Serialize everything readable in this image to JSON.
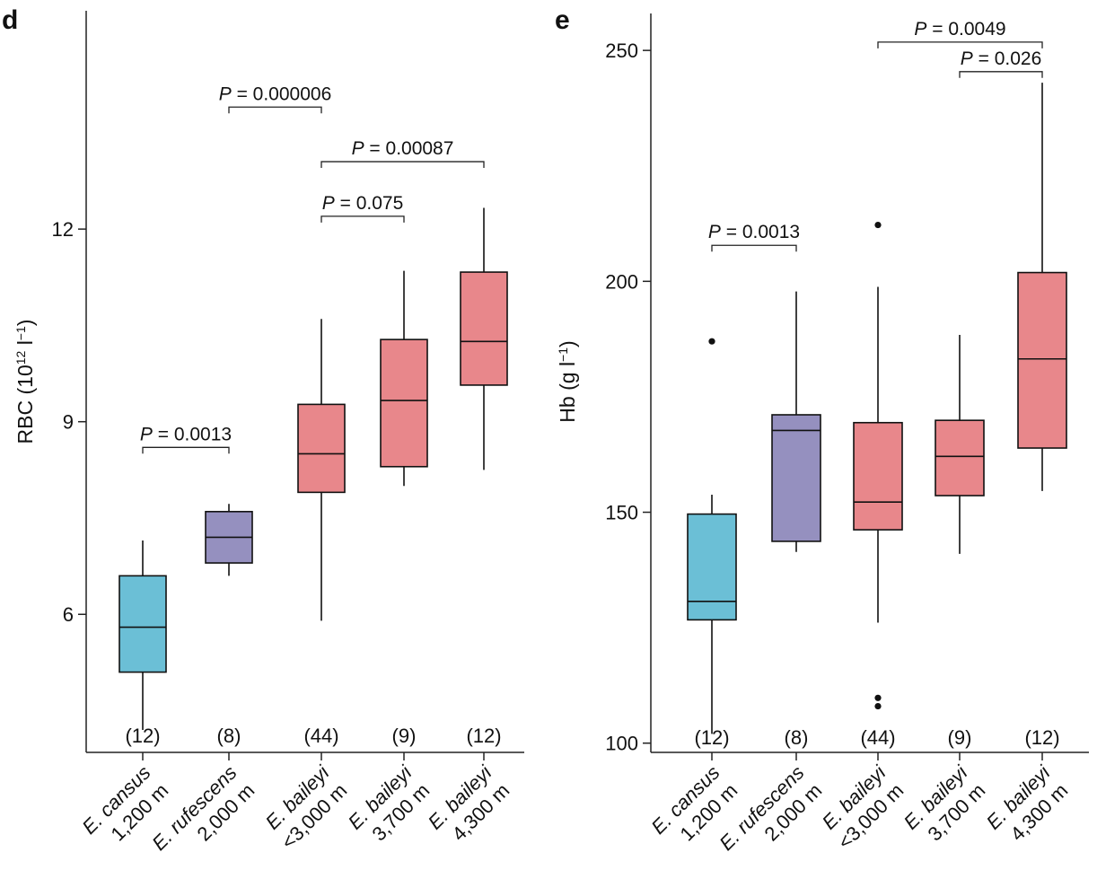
{
  "chart_data": [
    {
      "panel": "d",
      "type": "box",
      "ylabel": "RBC (10^12 l^-1)",
      "ylabel_parts": {
        "base": "RBC (10",
        "exp1": "12",
        "mid": " l",
        "exp2": "−1",
        "end": ")"
      },
      "ylim": [
        3.85,
        15.4
      ],
      "yticks": [
        6,
        9,
        12
      ],
      "colors": {
        "cansus": "#6bbfd6",
        "rufescens": "#9590bf",
        "baileyi": "#e8878b"
      },
      "groups": [
        {
          "label1": "E. cansus",
          "label2": "1,200 m",
          "n": "(12)",
          "color": "cansus",
          "whisker_low": 4.2,
          "q1": 5.1,
          "median": 5.8,
          "q3": 6.6,
          "whisker_high": 7.15,
          "outliers": []
        },
        {
          "label1": "E. rufescens",
          "label2": "2,000 m",
          "n": "(8)",
          "color": "rufescens",
          "whisker_low": 6.6,
          "q1": 6.8,
          "median": 7.2,
          "q3": 7.6,
          "whisker_high": 7.72,
          "outliers": []
        },
        {
          "label1": "E. baileyi",
          "label2": "<3,000 m",
          "n": "(44)",
          "color": "baileyi",
          "whisker_low": 5.9,
          "q1": 7.9,
          "median": 8.5,
          "q3": 9.27,
          "whisker_high": 10.6,
          "outliers": []
        },
        {
          "label1": "E. baileyi",
          "label2": "3,700 m",
          "n": "(9)",
          "color": "baileyi",
          "whisker_low": 8.0,
          "q1": 8.3,
          "median": 9.33,
          "q3": 10.28,
          "whisker_high": 11.35,
          "outliers": []
        },
        {
          "label1": "E. baileyi",
          "label2": "4,300 m",
          "n": "(12)",
          "color": "baileyi",
          "whisker_low": 8.25,
          "q1": 9.57,
          "median": 10.25,
          "q3": 11.33,
          "whisker_high": 12.33,
          "outliers": []
        }
      ],
      "comparisons": [
        {
          "from": 0,
          "to": 1,
          "y": 8.6,
          "label": "P = 0.0013"
        },
        {
          "from": 2,
          "to": 3,
          "y": 12.2,
          "label": "P = 0.075"
        },
        {
          "from": 2,
          "to": 4,
          "y": 13.05,
          "label": "P = 0.00087"
        },
        {
          "from": 1,
          "to": 2,
          "y": 13.9,
          "label": "P = 0.000006"
        }
      ]
    },
    {
      "panel": "e",
      "type": "box",
      "ylabel": "Hb (g l^-1)",
      "ylabel_parts": {
        "base": "Hb (g l",
        "exp1": "",
        "mid": "",
        "exp2": "−1",
        "end": ")"
      },
      "ylim": [
        98,
        258
      ],
      "yticks": [
        100,
        150,
        200,
        250
      ],
      "colors": {
        "cansus": "#6bbfd6",
        "rufescens": "#9590bf",
        "baileyi": "#e8878b"
      },
      "groups": [
        {
          "label1": "E. cansus",
          "label2": "1,200 m",
          "n": "(12)",
          "color": "cansus",
          "whisker_low": 102,
          "q1": 126.7,
          "median": 130.7,
          "q3": 149.6,
          "whisker_high": 153.8,
          "outliers": [
            187
          ]
        },
        {
          "label1": "E. rufescens",
          "label2": "2,000 m",
          "n": "(8)",
          "color": "rufescens",
          "whisker_low": 141.4,
          "q1": 143.7,
          "median": 167.7,
          "q3": 171.1,
          "whisker_high": 197.8,
          "outliers": []
        },
        {
          "label1": "E. baileyi",
          "label2": "<3,000 m",
          "n": "(44)",
          "color": "baileyi",
          "whisker_low": 126.1,
          "q1": 146.2,
          "median": 152.2,
          "q3": 169.4,
          "whisker_high": 198.8,
          "outliers": [
            212.2,
            109.8,
            108
          ]
        },
        {
          "label1": "E. baileyi",
          "label2": "3,700 m",
          "n": "(9)",
          "color": "baileyi",
          "whisker_low": 141,
          "q1": 153.6,
          "median": 162.1,
          "q3": 169.9,
          "whisker_high": 188.4,
          "outliers": []
        },
        {
          "label1": "E. baileyi",
          "label2": "4,300 m",
          "n": "(12)",
          "color": "baileyi",
          "whisker_low": 154.6,
          "q1": 163.9,
          "median": 183.2,
          "q3": 201.9,
          "whisker_high": 243,
          "outliers": []
        }
      ],
      "comparisons": [
        {
          "from": 0,
          "to": 1,
          "y": 207.8,
          "label": "P = 0.0013"
        },
        {
          "from": 3,
          "to": 4,
          "y": 245.4,
          "label": "P = 0.026"
        },
        {
          "from": 2,
          "to": 4,
          "y": 251.8,
          "label": "P = 0.0049"
        }
      ]
    }
  ]
}
